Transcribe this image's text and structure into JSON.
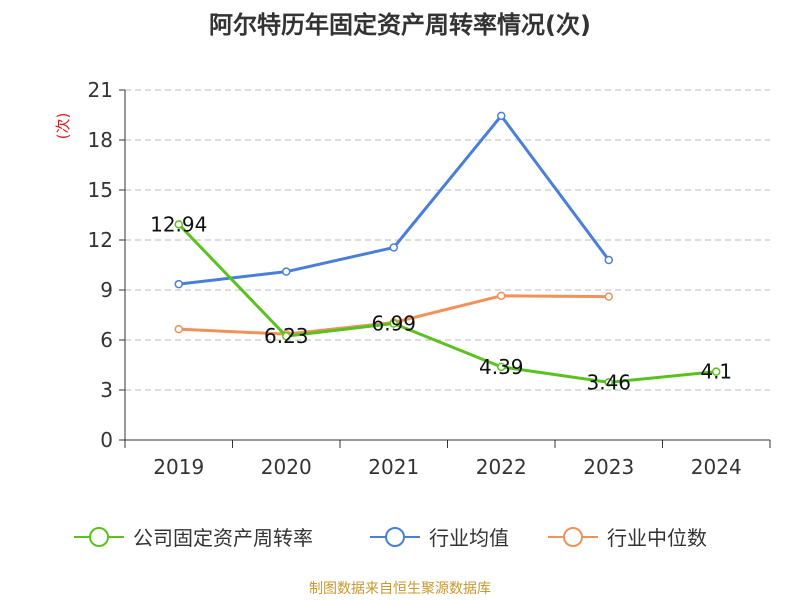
{
  "chart_data": {
    "type": "line",
    "title": "阿尔特历年固定资产周转率情况(次)",
    "ylabel": "(次)",
    "xlabel": "",
    "categories": [
      "2019",
      "2020",
      "2021",
      "2022",
      "2023",
      "2024"
    ],
    "ylim": [
      0,
      21
    ],
    "yticks": [
      0,
      3,
      6,
      9,
      12,
      15,
      18,
      21
    ],
    "grid": true,
    "legend_position": "bottom",
    "series": [
      {
        "name": "公司固定资产周转率",
        "color": "#5ac21e",
        "values": [
          12.94,
          6.23,
          6.99,
          4.39,
          3.46,
          4.1
        ],
        "labels": [
          "12.94",
          "6.23",
          "6.99",
          "4.39",
          "3.46",
          "4.1"
        ]
      },
      {
        "name": "行业均值",
        "color": "#4a7fd9",
        "values": [
          9.35,
          10.1,
          11.55,
          19.45,
          10.8,
          null
        ]
      },
      {
        "name": "行业中位数",
        "color": "#f29258",
        "values": [
          6.65,
          6.35,
          7.05,
          8.65,
          8.6,
          null
        ]
      }
    ]
  },
  "source_note": "制图数据来自恒生聚源数据库"
}
